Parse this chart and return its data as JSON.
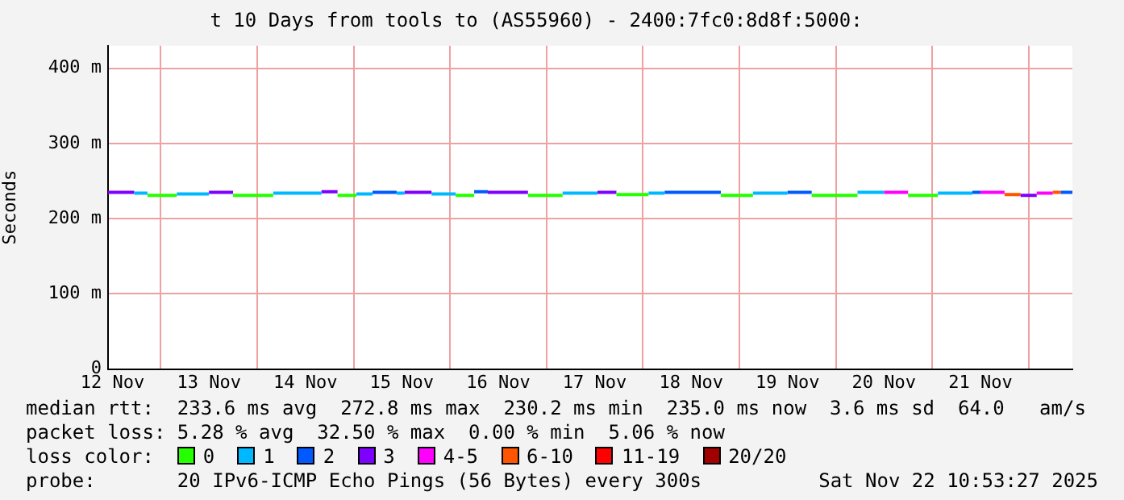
{
  "chart_data": {
    "type": "line",
    "title": "t 10 Days from tools to (AS55960) - 2400:7fc0:8d8f:5000:",
    "ylabel": "Seconds",
    "legend_title": "loss color:",
    "legend": "bottom",
    "grid": true,
    "xlim": [
      "2025-11-12T10:53",
      "2025-11-22T10:53"
    ],
    "xticks": [
      {
        "value": "2025-11-12T12:00",
        "label": "12 Nov"
      },
      {
        "value": "2025-11-13T00:00",
        "label": null
      },
      {
        "value": "2025-11-13T12:00",
        "label": "13 Nov"
      },
      {
        "value": "2025-11-14T00:00",
        "label": null
      },
      {
        "value": "2025-11-14T12:00",
        "label": "14 Nov"
      },
      {
        "value": "2025-11-15T00:00",
        "label": null
      },
      {
        "value": "2025-11-15T12:00",
        "label": "15 Nov"
      },
      {
        "value": "2025-11-16T00:00",
        "label": null
      },
      {
        "value": "2025-11-16T12:00",
        "label": "16 Nov"
      },
      {
        "value": "2025-11-17T00:00",
        "label": null
      },
      {
        "value": "2025-11-17T12:00",
        "label": "17 Nov"
      },
      {
        "value": "2025-11-18T00:00",
        "label": null
      },
      {
        "value": "2025-11-18T12:00",
        "label": "18 Nov"
      },
      {
        "value": "2025-11-19T00:00",
        "label": null
      },
      {
        "value": "2025-11-19T12:00",
        "label": "19 Nov"
      },
      {
        "value": "2025-11-20T00:00",
        "label": null
      },
      {
        "value": "2025-11-20T12:00",
        "label": "20 Nov"
      },
      {
        "value": "2025-11-21T00:00",
        "label": null
      },
      {
        "value": "2025-11-21T12:00",
        "label": "21 Nov"
      },
      {
        "value": "2025-11-22T00:00",
        "label": null
      }
    ],
    "ylim": [
      0,
      430
    ],
    "yticks": [
      0,
      {
        "value": 100,
        "label": "100 m"
      },
      {
        "value": 200,
        "label": "200 m"
      },
      {
        "value": 300,
        "label": "300 m"
      },
      {
        "value": 400,
        "label": "400 m"
      }
    ],
    "series": [
      {
        "name": "0",
        "color": "#26ff00",
        "x": [
          "2025-11-12T20:42",
          "2025-11-13T04:00",
          null,
          "2025-11-13T18:00",
          "2025-11-14T04:00",
          null,
          "2025-11-14T20:00",
          "2025-11-15T00:42",
          null,
          "2025-11-16T01:24",
          "2025-11-16T06:00",
          null,
          "2025-11-16T19:24",
          "2025-11-17T04:00",
          null,
          "2025-11-17T17:24",
          "2025-11-18T01:24",
          null,
          "2025-11-18T19:24",
          "2025-11-19T03:24",
          null,
          "2025-11-19T18:00",
          "2025-11-20T05:24",
          null,
          "2025-11-20T18:00",
          "2025-11-21T01:24"
        ],
        "values": [
          231,
          231,
          null,
          231,
          231,
          null,
          231,
          231,
          null,
          231,
          231,
          null,
          231,
          231,
          null,
          232,
          232,
          null,
          231,
          231,
          null,
          231,
          231,
          null,
          231,
          231
        ]
      },
      {
        "name": "1",
        "color": "#00b8ff",
        "x": [
          "2025-11-12T17:24",
          "2025-11-12T20:42",
          null,
          "2025-11-13T04:00",
          "2025-11-13T12:00",
          null,
          "2025-11-14T04:00",
          "2025-11-14T16:00",
          null,
          "2025-11-15T00:42",
          "2025-11-15T04:42",
          null,
          "2025-11-15T10:42",
          "2025-11-15T12:42",
          null,
          "2025-11-15T19:24",
          "2025-11-16T01:24",
          null,
          "2025-11-17T04:00",
          "2025-11-17T12:42",
          null,
          "2025-11-18T01:24",
          "2025-11-18T05:24",
          null,
          "2025-11-19T03:24",
          "2025-11-19T12:00",
          null,
          "2025-11-20T05:24",
          "2025-11-20T12:00",
          null,
          "2025-11-21T01:24",
          "2025-11-21T10:00"
        ],
        "values": [
          234,
          234,
          null,
          233,
          233,
          null,
          234,
          234,
          null,
          233,
          233,
          null,
          234,
          234,
          null,
          233,
          233,
          null,
          234,
          234,
          null,
          234,
          234,
          null,
          234,
          234,
          null,
          235,
          235,
          null,
          234,
          234
        ]
      },
      {
        "name": "2",
        "color": "#0059ff",
        "x": [
          "2025-11-15T04:42",
          "2025-11-15T10:42",
          null,
          "2025-11-16T06:00",
          "2025-11-16T09:24",
          null,
          "2025-11-18T05:24",
          "2025-11-18T19:24",
          null,
          "2025-11-19T12:00",
          "2025-11-19T18:00",
          null,
          "2025-11-21T10:00",
          "2025-11-21T12:00",
          null,
          "2025-11-22T08:00",
          "2025-11-22T10:53"
        ],
        "values": [
          235,
          235,
          null,
          236,
          236,
          null,
          235,
          235,
          null,
          235,
          235,
          null,
          235,
          235,
          null,
          235,
          235
        ]
      },
      {
        "name": "3",
        "color": "#7e00ff",
        "x": [
          "2025-11-12T10:53",
          "2025-11-12T17:24",
          null,
          "2025-11-13T12:00",
          "2025-11-13T18:00",
          null,
          "2025-11-14T16:00",
          "2025-11-14T20:00",
          null,
          "2025-11-15T12:42",
          "2025-11-15T19:24",
          null,
          "2025-11-16T09:24",
          "2025-11-16T19:24",
          null,
          "2025-11-17T12:42",
          "2025-11-17T17:24",
          null,
          "2025-11-21T22:00",
          "2025-11-22T02:00"
        ],
        "values": [
          235,
          235,
          null,
          235,
          235,
          null,
          236,
          236,
          null,
          235,
          235,
          null,
          235,
          235,
          null,
          235,
          235,
          null,
          231,
          231
        ]
      },
      {
        "name": "4-5",
        "color": "#ff00ff",
        "x": [
          "2025-11-20T12:00",
          "2025-11-20T18:00",
          null,
          "2025-11-21T12:00",
          "2025-11-21T18:00",
          null,
          "2025-11-22T02:00",
          "2025-11-22T06:00"
        ],
        "values": [
          235,
          235,
          null,
          235,
          235,
          null,
          234,
          234
        ]
      },
      {
        "name": "6-10",
        "color": "#ff5500",
        "x": [
          "2025-11-21T18:00",
          "2025-11-21T22:00",
          null,
          "2025-11-22T06:00",
          "2025-11-22T08:00"
        ],
        "values": [
          232,
          232,
          null,
          235,
          235
        ]
      },
      {
        "name": "11-19",
        "color": "#ff0000"
      },
      {
        "name": "20/20",
        "color": "#a10000"
      }
    ],
    "annotations": [
      "median rtt:  233.6 ms avg  272.8 ms max  230.2 ms min  235.0 ms now  3.6 ms sd  64.0   am/s",
      "packet loss: 5.28 % avg  32.50 % max  0.00 % min  5.06 % now",
      "probe:       20 IPv6-ICMP Echo Pings (56 Bytes) every 300s",
      "Sat Nov 22 10:53:27 2025"
    ]
  }
}
